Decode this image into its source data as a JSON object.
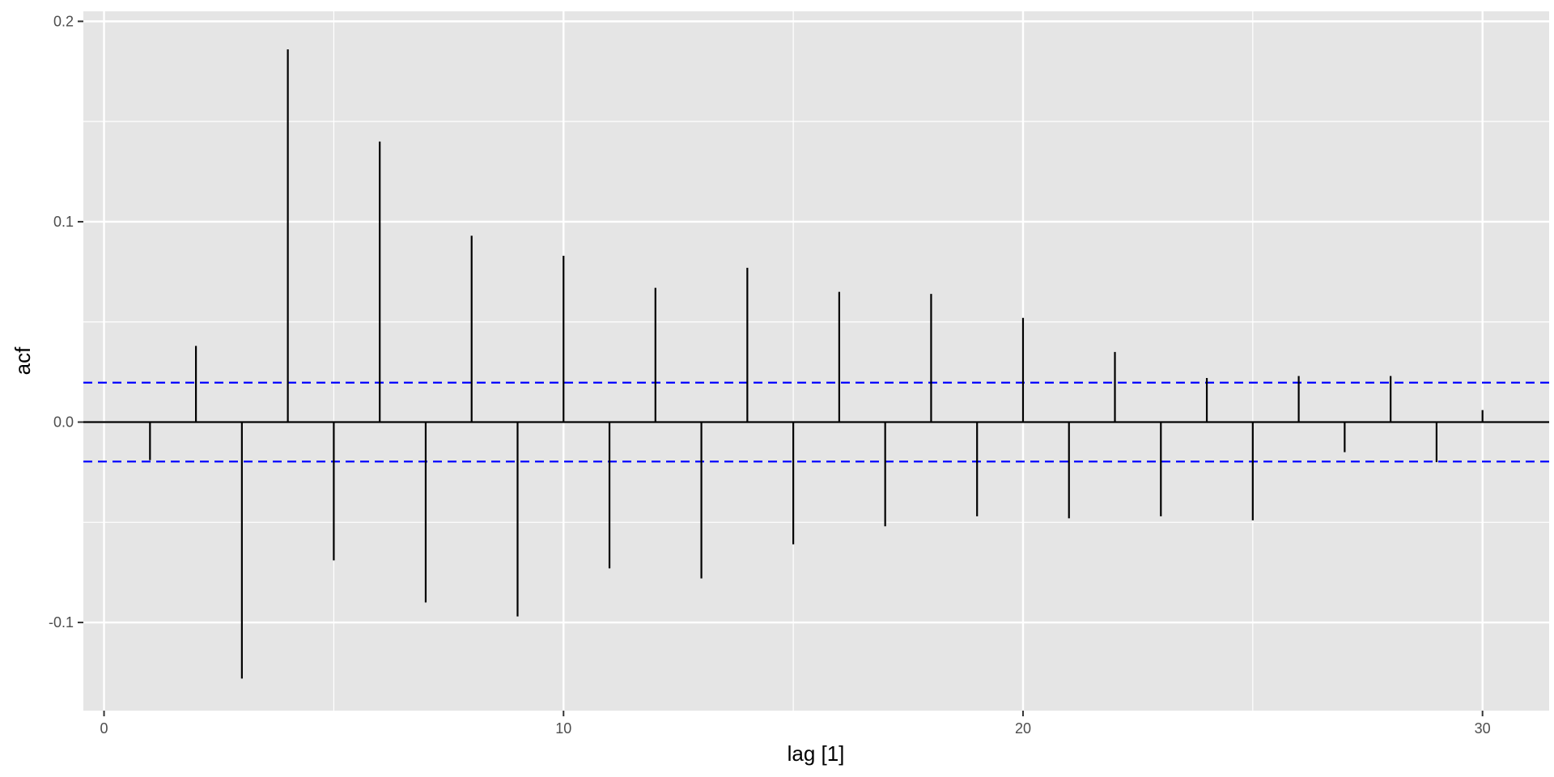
{
  "chart_data": {
    "type": "bar",
    "subtype": "acf-lollipop",
    "xlabel": "lag [1]",
    "ylabel": "acf",
    "x_ticks": [
      0,
      10,
      20,
      30
    ],
    "y_ticks": [
      -0.1,
      0.0,
      0.1,
      0.2
    ],
    "y_tick_labels": [
      "-0.1",
      "0.0",
      "0.1",
      "0.2"
    ],
    "x_tick_labels": [
      "0",
      "10",
      "20",
      "30"
    ],
    "xlim": [
      -0.45,
      31.45
    ],
    "ylim": [
      -0.144,
      0.205
    ],
    "x": [
      1,
      2,
      3,
      4,
      5,
      6,
      7,
      8,
      9,
      10,
      11,
      12,
      13,
      14,
      15,
      16,
      17,
      18,
      19,
      20,
      21,
      22,
      23,
      24,
      25,
      26,
      27,
      28,
      29,
      30
    ],
    "values": [
      -0.019,
      0.038,
      -0.128,
      0.186,
      -0.069,
      0.14,
      -0.09,
      0.093,
      -0.097,
      0.083,
      -0.073,
      0.067,
      -0.078,
      0.077,
      -0.061,
      0.065,
      -0.052,
      0.064,
      -0.047,
      0.052,
      -0.048,
      0.035,
      -0.047,
      0.022,
      -0.049,
      0.023,
      -0.015,
      0.023,
      -0.02,
      0.006
    ],
    "confidence_bound": 0.0197,
    "grid": true,
    "colors": {
      "panel": "#e5e5e5",
      "grid": "#ffffff",
      "bars": "#000000",
      "bound": "#0000ff"
    }
  }
}
